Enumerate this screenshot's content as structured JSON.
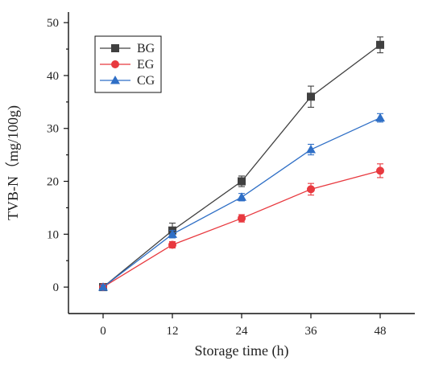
{
  "chart_data": {
    "type": "line",
    "xlabel": "Storage time (h)",
    "ylabel": "TVB-N（mg/100g)",
    "x": [
      0,
      12,
      24,
      36,
      48
    ],
    "x_ticks": [
      "0",
      "12",
      "24",
      "36",
      "48"
    ],
    "xlim": [
      -6,
      54
    ],
    "y_ticks": [
      "0",
      "10",
      "20",
      "30",
      "40",
      "50"
    ],
    "ylim": [
      -5,
      52
    ],
    "grid": false,
    "legend_position": "top-left",
    "series": [
      {
        "name": "BG",
        "marker": "square",
        "color": "#404040",
        "values": [
          0,
          10.7,
          20,
          36,
          45.8
        ],
        "errors": [
          0.5,
          1.4,
          1.0,
          2.0,
          1.5
        ]
      },
      {
        "name": "EG",
        "marker": "circle",
        "color": "#e8393f",
        "values": [
          0,
          8.0,
          13.0,
          18.5,
          22.0
        ],
        "errors": [
          0.4,
          0.6,
          0.7,
          1.1,
          1.3
        ]
      },
      {
        "name": "CG",
        "marker": "triangle",
        "color": "#2f6fc6",
        "values": [
          0,
          10.0,
          17.0,
          26.0,
          32.0
        ],
        "errors": [
          0.4,
          0.7,
          0.7,
          1.0,
          0.8
        ]
      }
    ]
  }
}
